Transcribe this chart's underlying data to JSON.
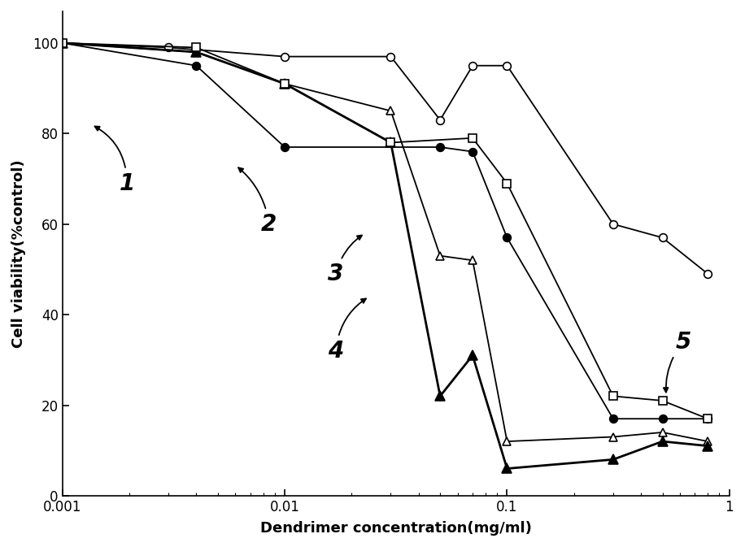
{
  "title": "",
  "xlabel": "Dendrimer concentration(mg/ml)",
  "ylabel": "Cell viability(%control)",
  "ylim": [
    0,
    107
  ],
  "yticks": [
    0,
    20,
    40,
    60,
    80,
    100
  ],
  "series": [
    {
      "label": "1",
      "marker": "o",
      "fillstyle": "none",
      "linewidth": 1.3,
      "markersize": 7,
      "x": [
        0.001,
        0.003,
        0.01,
        0.03,
        0.05,
        0.07,
        0.1,
        0.3,
        0.5,
        0.8
      ],
      "y": [
        100,
        99,
        97,
        97,
        83,
        95,
        95,
        60,
        57,
        49
      ]
    },
    {
      "label": "2",
      "marker": "o",
      "fillstyle": "full",
      "linewidth": 1.3,
      "markersize": 7,
      "x": [
        0.001,
        0.004,
        0.01,
        0.05,
        0.07,
        0.1,
        0.3,
        0.5,
        0.8
      ],
      "y": [
        100,
        95,
        77,
        77,
        76,
        57,
        17,
        17,
        17
      ]
    },
    {
      "label": "3",
      "marker": "^",
      "fillstyle": "none",
      "linewidth": 1.3,
      "markersize": 7,
      "x": [
        0.001,
        0.004,
        0.01,
        0.03,
        0.05,
        0.07,
        0.1,
        0.3,
        0.5,
        0.8
      ],
      "y": [
        100,
        98,
        91,
        85,
        53,
        52,
        12,
        13,
        14,
        12
      ]
    },
    {
      "label": "4",
      "marker": "^",
      "fillstyle": "full",
      "linewidth": 2.0,
      "markersize": 8,
      "x": [
        0.001,
        0.004,
        0.01,
        0.03,
        0.05,
        0.07,
        0.1,
        0.3,
        0.5,
        0.8
      ],
      "y": [
        100,
        98,
        91,
        78,
        22,
        31,
        6,
        8,
        12,
        11
      ]
    },
    {
      "label": "5",
      "marker": "s",
      "fillstyle": "none",
      "linewidth": 1.3,
      "markersize": 7,
      "x": [
        0.001,
        0.004,
        0.01,
        0.03,
        0.07,
        0.1,
        0.3,
        0.5,
        0.8
      ],
      "y": [
        100,
        99,
        91,
        78,
        79,
        69,
        22,
        21,
        17
      ]
    }
  ],
  "annots": [
    {
      "text": "1",
      "xt": 0.00195,
      "yt": 69,
      "xe": 0.00135,
      "ye": 82,
      "rad": 0.3
    },
    {
      "text": "2",
      "xt": 0.0085,
      "yt": 60,
      "xe": 0.006,
      "ye": 73,
      "rad": 0.2
    },
    {
      "text": "3",
      "xt": 0.017,
      "yt": 49,
      "xe": 0.023,
      "ye": 58,
      "rad": -0.2
    },
    {
      "text": "4",
      "xt": 0.017,
      "yt": 32,
      "xe": 0.024,
      "ye": 44,
      "rad": -0.25
    },
    {
      "text": "5",
      "xt": 0.62,
      "yt": 34,
      "xe": 0.52,
      "ye": 22,
      "rad": 0.2
    }
  ]
}
